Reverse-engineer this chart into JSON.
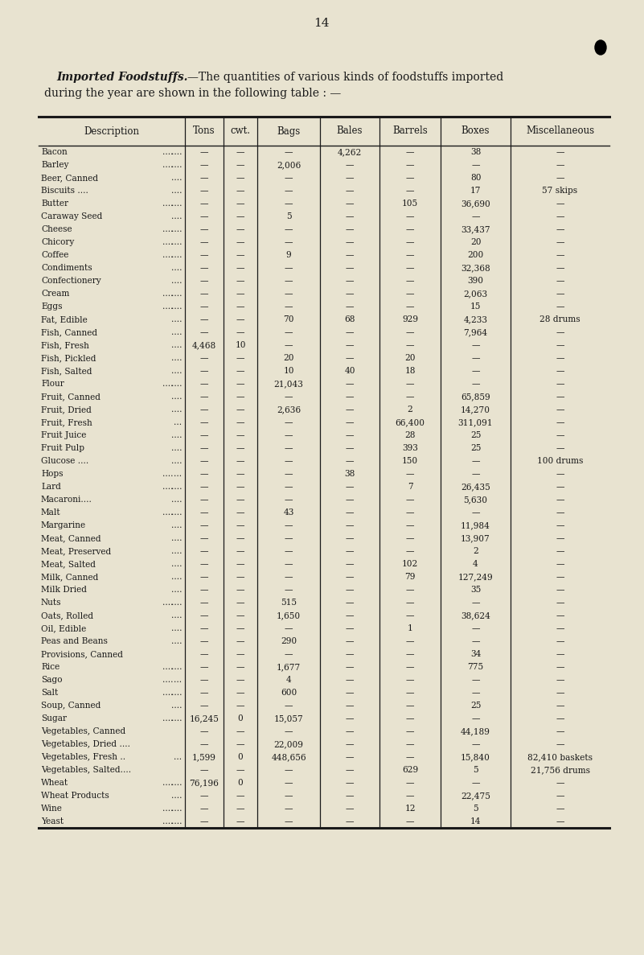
{
  "page_number": "14",
  "background_color": "#e8e3d0",
  "text_color": "#1a1a1a",
  "columns": [
    "Description",
    "Tons",
    "cwt.",
    "Bags",
    "Bales",
    "Barrels",
    "Boxes",
    "Miscellaneous"
  ],
  "rows": [
    [
      "Bacon",
      "....",
      "....",
      "—",
      "—",
      "—",
      "4,262",
      "—",
      "38",
      "—"
    ],
    [
      "Barley",
      "....",
      "....",
      "—",
      "—",
      "2,006",
      "—",
      "—",
      "—",
      "—"
    ],
    [
      "Beer, Canned",
      "",
      "....",
      "—",
      "—",
      "—",
      "—",
      "—",
      "80",
      "—"
    ],
    [
      "Biscuits ....",
      "",
      "....",
      "—",
      "—",
      "—",
      "—",
      "—",
      "17",
      "57 skips"
    ],
    [
      "Butter",
      "....",
      "....",
      "—",
      "—",
      "—",
      "—",
      "105",
      "36,690",
      "—"
    ],
    [
      "Caraway Seed",
      "",
      "....",
      "—",
      "—",
      "5",
      "—",
      "—",
      "—",
      "—"
    ],
    [
      "Cheese",
      "....",
      "....",
      "—",
      "—",
      "—",
      "—",
      "—",
      "33,437",
      "—"
    ],
    [
      "Chicory",
      "....",
      "....",
      "—",
      "—",
      "—",
      "—",
      "—",
      "20",
      "—"
    ],
    [
      "Coffee",
      "....",
      "....",
      "—",
      "—",
      "9",
      "—",
      "—",
      "200",
      "—"
    ],
    [
      "Condiments",
      "",
      "....",
      "—",
      "—",
      "—",
      "—",
      "—",
      "32,368",
      "—"
    ],
    [
      "Confectionery",
      "",
      "....",
      "—",
      "—",
      "—",
      "—",
      "—",
      "390",
      "—"
    ],
    [
      "Cream",
      "....",
      "....",
      "—",
      "—",
      "—",
      "—",
      "—",
      "2,063",
      "—"
    ],
    [
      "Eggs",
      "....",
      "....",
      "—",
      "—",
      "—",
      "—",
      "—",
      "15",
      "—"
    ],
    [
      "Fat, Edible",
      "",
      "....",
      "—",
      "—",
      "70",
      "68",
      "929",
      "4,233",
      "28 drums"
    ],
    [
      "Fish, Canned",
      "",
      "....",
      "—",
      "—",
      "—",
      "—",
      "—",
      "7,964",
      "—"
    ],
    [
      "Fish, Fresh",
      "",
      "....",
      "4,468",
      "10",
      "—",
      "—",
      "—",
      "—",
      "—"
    ],
    [
      "Fish, Pickled",
      "",
      "....",
      "—",
      "—",
      "20",
      "—",
      "20",
      "—",
      "—"
    ],
    [
      "Fish, Salted",
      "",
      "....",
      "—",
      "—",
      "10",
      "40",
      "18",
      "—",
      "—"
    ],
    [
      "Flour",
      "....",
      "....",
      "—",
      "—",
      "21,043",
      "—",
      "—",
      "—",
      "—"
    ],
    [
      "Fruit, Canned",
      "",
      "....",
      "—",
      "—",
      "—",
      "—",
      "—",
      "65,859",
      "—"
    ],
    [
      "Fruit, Dried",
      "",
      "....",
      "—",
      "—",
      "2,636",
      "—",
      "2",
      "14,270",
      "—"
    ],
    [
      "Fruit, Fresh",
      "",
      "...",
      "—",
      "—",
      "—",
      "—",
      "66,400",
      "311,091",
      "—"
    ],
    [
      "Fruit Juice",
      "",
      "....",
      "—",
      "—",
      "—",
      "—",
      "28",
      "25",
      "—"
    ],
    [
      "Fruit Pulp",
      "",
      "....",
      "—",
      "—",
      "—",
      "—",
      "393",
      "25",
      "—"
    ],
    [
      "Glucose ....",
      "",
      "....",
      "—",
      "—",
      "—",
      "—",
      "150",
      "—",
      "100 drums"
    ],
    [
      "Hops",
      "....",
      "...",
      "—",
      "—",
      "—",
      "38",
      "—",
      "—",
      "—"
    ],
    [
      "Lard",
      "....",
      "....",
      "—",
      "—",
      "—",
      "—",
      "7",
      "26,435",
      "—"
    ],
    [
      "Macaroni....",
      "",
      "....",
      "—",
      "—",
      "—",
      "—",
      "—",
      "5,630",
      "—"
    ],
    [
      "Malt",
      "....",
      "....",
      "—",
      "—",
      "43",
      "—",
      "—",
      "—",
      "—"
    ],
    [
      "Margarine",
      "",
      "....",
      "—",
      "—",
      "—",
      "—",
      "—",
      "11,984",
      "—"
    ],
    [
      "Meat, Canned",
      "",
      "....",
      "—",
      "—",
      "—",
      "—",
      "—",
      "13,907",
      "—"
    ],
    [
      "Meat, Preserved",
      "",
      "....",
      "—",
      "—",
      "—",
      "—",
      "—",
      "2",
      "—"
    ],
    [
      "Meat, Salted",
      "",
      "....",
      "—",
      "—",
      "—",
      "—",
      "102",
      "4",
      "—"
    ],
    [
      "Milk, Canned",
      "",
      "....",
      "—",
      "—",
      "—",
      "—",
      "79",
      "127,249",
      "—"
    ],
    [
      "Milk Dried",
      "",
      "....",
      "—",
      "—",
      "—",
      "—",
      "—",
      "35",
      "—"
    ],
    [
      "Nuts",
      "....",
      "....",
      "—",
      "—",
      "515",
      "—",
      "—",
      "—",
      "—"
    ],
    [
      "Oats, Rolled",
      "",
      "....",
      "—",
      "—",
      "1,650",
      "—",
      "—",
      "38,624",
      "—"
    ],
    [
      "Oil, Edible",
      "",
      "....",
      "—",
      "—",
      "—",
      "—",
      "1",
      "—",
      "—"
    ],
    [
      "Peas and Beans",
      "",
      "....",
      "—",
      "—",
      "290",
      "—",
      "—",
      "—",
      "—"
    ],
    [
      "Provisions, Canned",
      "",
      "",
      "—",
      "—",
      "—",
      "—",
      "—",
      "34",
      "—"
    ],
    [
      "Rice",
      "....",
      "....",
      "—",
      "—",
      "1,677",
      "—",
      "—",
      "775",
      "—"
    ],
    [
      "Sago",
      "....",
      "...",
      "—",
      "—",
      "4",
      "—",
      "—",
      "—",
      "—"
    ],
    [
      "Salt",
      "....",
      "....",
      "—",
      "—",
      "600",
      "—",
      "—",
      "—",
      "—"
    ],
    [
      "Soup, Canned",
      "",
      "....",
      "—",
      "—",
      "—",
      "—",
      "—",
      "25",
      "—"
    ],
    [
      "Sugar",
      "....",
      "....",
      "16,245",
      "0",
      "15,057",
      "—",
      "—",
      "—",
      "—"
    ],
    [
      "Vegetables, Canned",
      "",
      "",
      "—",
      "—",
      "—",
      "—",
      "—",
      "44,189",
      "—"
    ],
    [
      "Vegetables, Dried ....",
      "",
      "",
      "—",
      "—",
      "22,009",
      "—",
      "—",
      "—",
      "—"
    ],
    [
      "Vegetables, Fresh ..",
      "",
      "...",
      "1,599",
      "0",
      "448,656",
      "—",
      "—",
      "15,840",
      "82,410 baskets"
    ],
    [
      "Vegetables, Salted....",
      "",
      "",
      "—",
      "—",
      "—",
      "—",
      "629",
      "5",
      "21,756 drums"
    ],
    [
      "Wheat",
      "....",
      "....",
      "76,196",
      "0",
      "—",
      "—",
      "—",
      "—",
      "—"
    ],
    [
      "Wheat Products",
      "",
      "....",
      "—",
      "—",
      "—",
      "—",
      "—",
      "22,475",
      "—"
    ],
    [
      "Wine",
      "....",
      "....",
      "—",
      "—",
      "—",
      "—",
      "12",
      "5",
      "—"
    ],
    [
      "Yeast",
      "....",
      "....",
      "—",
      "—",
      "—",
      "—",
      "—",
      "14",
      "—"
    ]
  ]
}
